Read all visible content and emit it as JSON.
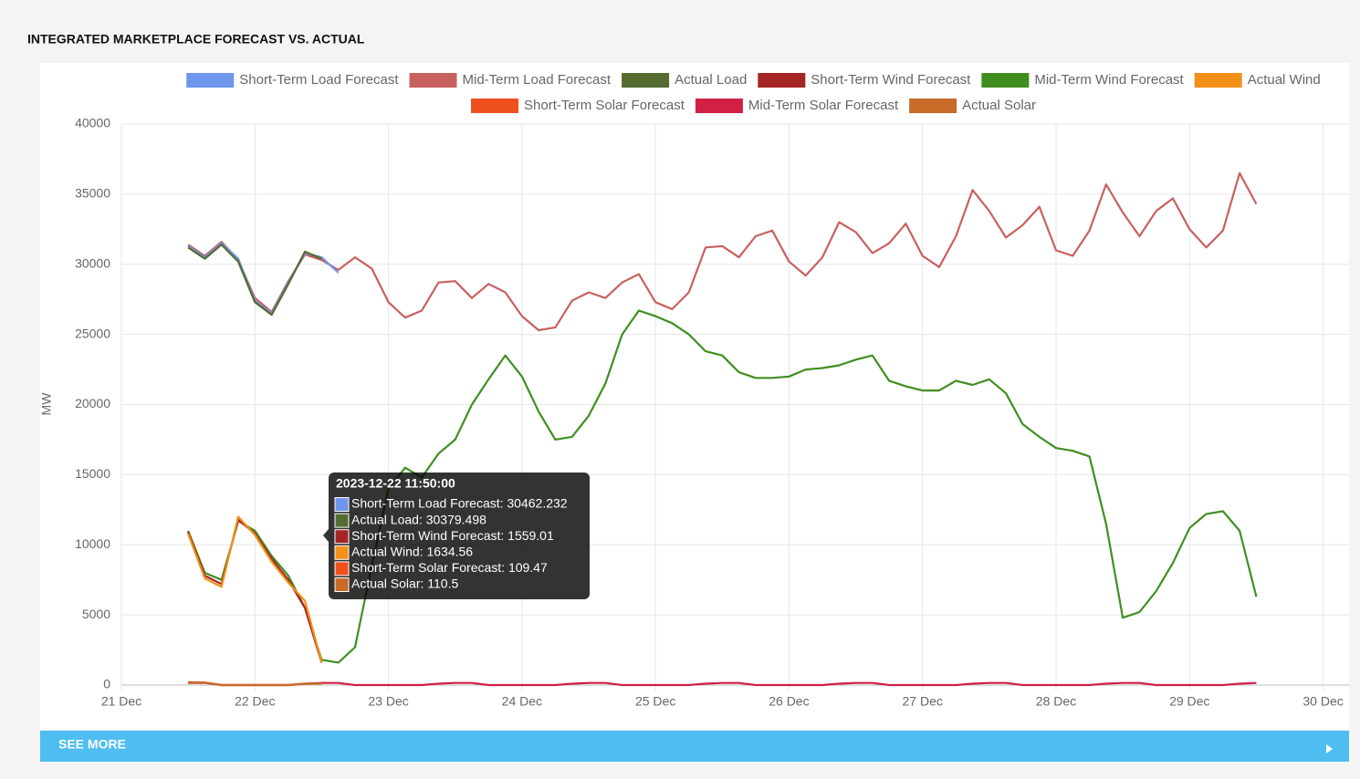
{
  "chart_data": {
    "type": "line",
    "title": "INTEGRATED MARKETPLACE FORECAST VS. ACTUAL",
    "y_label": "MW",
    "button": "SEE MORE",
    "ylim": [
      0,
      40000
    ],
    "yticks": [
      0,
      5000,
      10000,
      15000,
      20000,
      25000,
      30000,
      35000,
      40000
    ],
    "xlim": [
      "2023-12-21T00:00",
      "2023-12-30T04:40"
    ],
    "xticks": [
      {
        "value": "2023-12-21T00:00",
        "label": "21 Dec"
      },
      {
        "value": "2023-12-22T00:00",
        "label": "22 Dec"
      },
      {
        "value": "2023-12-23T00:00",
        "label": "23 Dec"
      },
      {
        "value": "2023-12-24T00:00",
        "label": "24 Dec"
      },
      {
        "value": "2023-12-25T00:00",
        "label": "25 Dec"
      },
      {
        "value": "2023-12-26T00:00",
        "label": "26 Dec"
      },
      {
        "value": "2023-12-27T00:00",
        "label": "27 Dec"
      },
      {
        "value": "2023-12-28T00:00",
        "label": "28 Dec"
      },
      {
        "value": "2023-12-29T00:00",
        "label": "29 Dec"
      },
      {
        "value": "2023-12-30T00:00",
        "label": "30 Dec"
      }
    ],
    "grid": true,
    "legend": "top",
    "x": [
      "2023-12-21T12:00",
      "2023-12-21T15:00",
      "2023-12-21T18:00",
      "2023-12-21T21:00",
      "2023-12-22T00:00",
      "2023-12-22T03:00",
      "2023-12-22T06:00",
      "2023-12-22T09:00",
      "2023-12-22T12:00",
      "2023-12-22T15:00",
      "2023-12-22T18:00",
      "2023-12-22T21:00",
      "2023-12-23T00:00",
      "2023-12-23T03:00",
      "2023-12-23T06:00",
      "2023-12-23T09:00",
      "2023-12-23T12:00",
      "2023-12-23T15:00",
      "2023-12-23T18:00",
      "2023-12-23T21:00",
      "2023-12-24T00:00",
      "2023-12-24T03:00",
      "2023-12-24T06:00",
      "2023-12-24T09:00",
      "2023-12-24T12:00",
      "2023-12-24T15:00",
      "2023-12-24T18:00",
      "2023-12-24T21:00",
      "2023-12-25T00:00",
      "2023-12-25T03:00",
      "2023-12-25T06:00",
      "2023-12-25T09:00",
      "2023-12-25T12:00",
      "2023-12-25T15:00",
      "2023-12-25T18:00",
      "2023-12-25T21:00",
      "2023-12-26T00:00",
      "2023-12-26T03:00",
      "2023-12-26T06:00",
      "2023-12-26T09:00",
      "2023-12-26T12:00",
      "2023-12-26T15:00",
      "2023-12-26T18:00",
      "2023-12-26T21:00",
      "2023-12-27T00:00",
      "2023-12-27T03:00",
      "2023-12-27T06:00",
      "2023-12-27T09:00",
      "2023-12-27T12:00",
      "2023-12-27T15:00",
      "2023-12-27T18:00",
      "2023-12-27T21:00",
      "2023-12-28T00:00",
      "2023-12-28T03:00",
      "2023-12-28T06:00",
      "2023-12-28T09:00",
      "2023-12-28T12:00",
      "2023-12-28T15:00",
      "2023-12-28T18:00",
      "2023-12-28T21:00",
      "2023-12-29T00:00",
      "2023-12-29T03:00",
      "2023-12-29T06:00",
      "2023-12-29T09:00",
      "2023-12-29T12:00"
    ],
    "series": [
      {
        "name": "Short-Term Load Forecast",
        "color": "#6d96ec",
        "values": [
          31300,
          30500,
          31500,
          30400,
          27400,
          26500,
          28700,
          30800,
          30500,
          29400,
          null,
          null,
          null,
          null,
          null,
          null,
          null,
          null,
          null,
          null,
          null,
          null,
          null,
          null,
          null,
          null,
          null,
          null,
          null,
          null,
          null,
          null,
          null,
          null,
          null,
          null,
          null,
          null,
          null,
          null,
          null,
          null,
          null,
          null,
          null,
          null,
          null,
          null,
          null,
          null,
          null,
          null,
          null,
          null,
          null,
          null,
          null,
          null,
          null,
          null,
          null,
          null,
          null,
          null,
          null
        ]
      },
      {
        "name": "Mid-Term Load Forecast",
        "color": "#c86060",
        "values": [
          31400,
          30600,
          31600,
          30300,
          27600,
          26600,
          28800,
          30700,
          30300,
          29600,
          30500,
          29700,
          27300,
          26200,
          26700,
          28700,
          28800,
          27600,
          28600,
          28000,
          26300,
          25300,
          25500,
          27400,
          28000,
          27600,
          28700,
          29300,
          27300,
          26800,
          28000,
          31200,
          31300,
          30500,
          32000,
          32400,
          30200,
          29200,
          30500,
          33000,
          32300,
          30800,
          31500,
          32900,
          30600,
          29800,
          32000,
          35300,
          33800,
          31900,
          32800,
          34100,
          31000,
          30600,
          32400,
          35700,
          33700,
          32000,
          33800,
          34700,
          32500,
          31200,
          32400,
          36500,
          34300
        ]
      },
      {
        "name": "Actual Load",
        "color": "#556b2f",
        "values": [
          31200,
          30400,
          31400,
          30200,
          27300,
          26400,
          28600,
          30900,
          30400,
          null,
          null,
          null,
          null,
          null,
          null,
          null,
          null,
          null,
          null,
          null,
          null,
          null,
          null,
          null,
          null,
          null,
          null,
          null,
          null,
          null,
          null,
          null,
          null,
          null,
          null,
          null,
          null,
          null,
          null,
          null,
          null,
          null,
          null,
          null,
          null,
          null,
          null,
          null,
          null,
          null,
          null,
          null,
          null,
          null,
          null,
          null,
          null,
          null,
          null,
          null,
          null,
          null,
          null,
          null,
          null
        ]
      },
      {
        "name": "Short-Term Wind Forecast",
        "color": "#a52424",
        "values": [
          10900,
          7800,
          7200,
          11800,
          10800,
          9000,
          7500,
          5500,
          1600,
          null,
          null,
          null,
          null,
          null,
          null,
          null,
          null,
          null,
          null,
          null,
          null,
          null,
          null,
          null,
          null,
          null,
          null,
          null,
          null,
          null,
          null,
          null,
          null,
          null,
          null,
          null,
          null,
          null,
          null,
          null,
          null,
          null,
          null,
          null,
          null,
          null,
          null,
          null,
          null,
          null,
          null,
          null,
          null,
          null,
          null,
          null,
          null,
          null,
          null,
          null,
          null,
          null,
          null,
          null,
          null
        ]
      },
      {
        "name": "Mid-Term Wind Forecast",
        "color": "#3f8f1f",
        "values": [
          11000,
          8000,
          7500,
          11700,
          11000,
          9200,
          7800,
          5500,
          1800,
          1600,
          2700,
          8500,
          14000,
          15500,
          14800,
          16500,
          17500,
          20000,
          21800,
          23500,
          22000,
          19500,
          17500,
          17700,
          19200,
          21500,
          25000,
          26700,
          26300,
          25800,
          25000,
          23800,
          23500,
          22300,
          21900,
          21900,
          22000,
          22500,
          22600,
          22800,
          23200,
          23500,
          21700,
          21300,
          21000,
          21000,
          21700,
          21400,
          21800,
          20800,
          18600,
          17700,
          16900,
          16700,
          16300,
          11500,
          4800,
          5200,
          6700,
          8700,
          11200,
          12200,
          12400,
          11000,
          6300
        ]
      },
      {
        "name": "Actual Wind",
        "color": "#f39019",
        "values": [
          10800,
          7600,
          7000,
          12000,
          10700,
          8800,
          7300,
          6000,
          1630,
          null,
          null,
          null,
          null,
          null,
          null,
          null,
          null,
          null,
          null,
          null,
          null,
          null,
          null,
          null,
          null,
          null,
          null,
          null,
          null,
          null,
          null,
          null,
          null,
          null,
          null,
          null,
          null,
          null,
          null,
          null,
          null,
          null,
          null,
          null,
          null,
          null,
          null,
          null,
          null,
          null,
          null,
          null,
          null,
          null,
          null,
          null,
          null,
          null,
          null,
          null,
          null,
          null,
          null,
          null,
          null
        ]
      },
      {
        "name": "Short-Term Solar Forecast",
        "color": "#f0501e",
        "values": [
          200,
          180,
          0,
          0,
          0,
          0,
          0,
          90,
          110,
          null,
          null,
          null,
          null,
          null,
          null,
          null,
          null,
          null,
          null,
          null,
          null,
          null,
          null,
          null,
          null,
          null,
          null,
          null,
          null,
          null,
          null,
          null,
          null,
          null,
          null,
          null,
          null,
          null,
          null,
          null,
          null,
          null,
          null,
          null,
          null,
          null,
          null,
          null,
          null,
          null,
          null,
          null,
          null,
          null,
          null,
          null,
          null,
          null,
          null,
          null,
          null,
          null,
          null,
          null,
          null
        ]
      },
      {
        "name": "Mid-Term Solar Forecast",
        "color": "#d21f45",
        "values": [
          150,
          150,
          0,
          0,
          0,
          0,
          0,
          100,
          150,
          150,
          0,
          0,
          0,
          0,
          0,
          100,
          150,
          150,
          0,
          0,
          0,
          0,
          0,
          100,
          150,
          150,
          0,
          0,
          0,
          0,
          0,
          100,
          150,
          150,
          0,
          0,
          0,
          0,
          0,
          100,
          150,
          150,
          0,
          0,
          0,
          0,
          0,
          100,
          150,
          150,
          0,
          0,
          0,
          0,
          0,
          100,
          150,
          150,
          0,
          0,
          0,
          0,
          0,
          100,
          150
        ]
      },
      {
        "name": "Actual Solar",
        "color": "#c86a28",
        "values": [
          190,
          170,
          0,
          0,
          0,
          0,
          0,
          100,
          110,
          null,
          null,
          null,
          null,
          null,
          null,
          null,
          null,
          null,
          null,
          null,
          null,
          null,
          null,
          null,
          null,
          null,
          null,
          null,
          null,
          null,
          null,
          null,
          null,
          null,
          null,
          null,
          null,
          null,
          null,
          null,
          null,
          null,
          null,
          null,
          null,
          null,
          null,
          null,
          null,
          null,
          null,
          null,
          null,
          null,
          null,
          null,
          null,
          null,
          null,
          null,
          null,
          null,
          null,
          null,
          null
        ]
      }
    ],
    "tooltip": {
      "title": "2023-12-22 11:50:00",
      "lines": [
        "Short-Term Load Forecast: 30462.232",
        "Actual Load: 30379.498",
        "Short-Term Wind Forecast: 1559.01",
        "Actual Wind: 1634.56",
        "Short-Term Solar Forecast: 109.47",
        "Actual Solar: 110.5"
      ]
    }
  }
}
